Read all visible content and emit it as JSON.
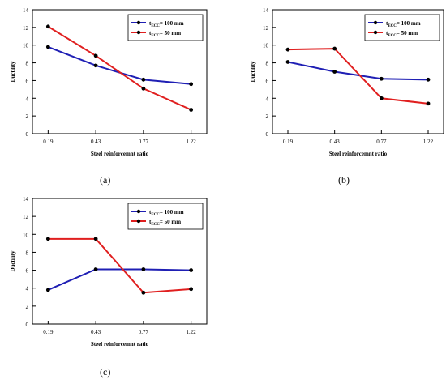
{
  "captions": [
    "(a)",
    "(b)",
    "(c)"
  ],
  "chart_data": [
    {
      "type": "line",
      "panel": "(a)",
      "categories": [
        "0.19",
        "0.43",
        "0.77",
        "1.22"
      ],
      "xlabel": "Steel reinforcemnt ratio",
      "ylabel": "Ductility",
      "ylim": [
        0,
        14
      ],
      "yticks": [
        "0",
        "2",
        "4",
        "6",
        "8",
        "10",
        "12",
        "14"
      ],
      "legend_position": "top-right",
      "series": [
        {
          "name_main": "t",
          "name_sub": "ECC",
          "name_rest": "= 100 mm",
          "color": "#1f1fb4",
          "values": [
            9.8,
            7.7,
            6.1,
            5.6
          ]
        },
        {
          "name_main": "t",
          "name_sub": "ECC",
          "name_rest": "= 50 mm",
          "color": "#e01f1f",
          "values": [
            12.1,
            8.8,
            5.1,
            2.7
          ]
        }
      ]
    },
    {
      "type": "line",
      "panel": "(b)",
      "categories": [
        "0.19",
        "0.43",
        "0.77",
        "1.22"
      ],
      "xlabel": "Steel reinforcemnt ratio",
      "ylabel": "Ductility",
      "ylim": [
        0,
        14
      ],
      "yticks": [
        "0",
        "2",
        "4",
        "6",
        "8",
        "10",
        "12",
        "14"
      ],
      "legend_position": "top-right",
      "series": [
        {
          "name_main": "t",
          "name_sub": "ECC",
          "name_rest": "= 100 mm",
          "color": "#1f1fb4",
          "values": [
            8.1,
            7.0,
            6.2,
            6.1
          ]
        },
        {
          "name_main": "t",
          "name_sub": "ECC",
          "name_rest": "= 50 mm",
          "color": "#e01f1f",
          "values": [
            9.5,
            9.6,
            4.0,
            3.4
          ]
        }
      ]
    },
    {
      "type": "line",
      "panel": "(c)",
      "categories": [
        "0.19",
        "0.43",
        "0.77",
        "1.22"
      ],
      "xlabel": "Steel reinforcemnt ratio",
      "ylabel": "Ductility",
      "ylim": [
        0,
        14
      ],
      "yticks": [
        "0",
        "2",
        "4",
        "6",
        "8",
        "10",
        "12",
        "14"
      ],
      "legend_position": "top-right",
      "series": [
        {
          "name_main": "t",
          "name_sub": "ECC",
          "name_rest": "= 100 mm",
          "color": "#1f1fb4",
          "values": [
            3.8,
            6.1,
            6.1,
            6.0
          ]
        },
        {
          "name_main": "t",
          "name_sub": "ECC",
          "name_rest": "= 50 mm",
          "color": "#e01f1f",
          "values": [
            9.5,
            9.5,
            3.5,
            3.9
          ]
        }
      ]
    }
  ]
}
